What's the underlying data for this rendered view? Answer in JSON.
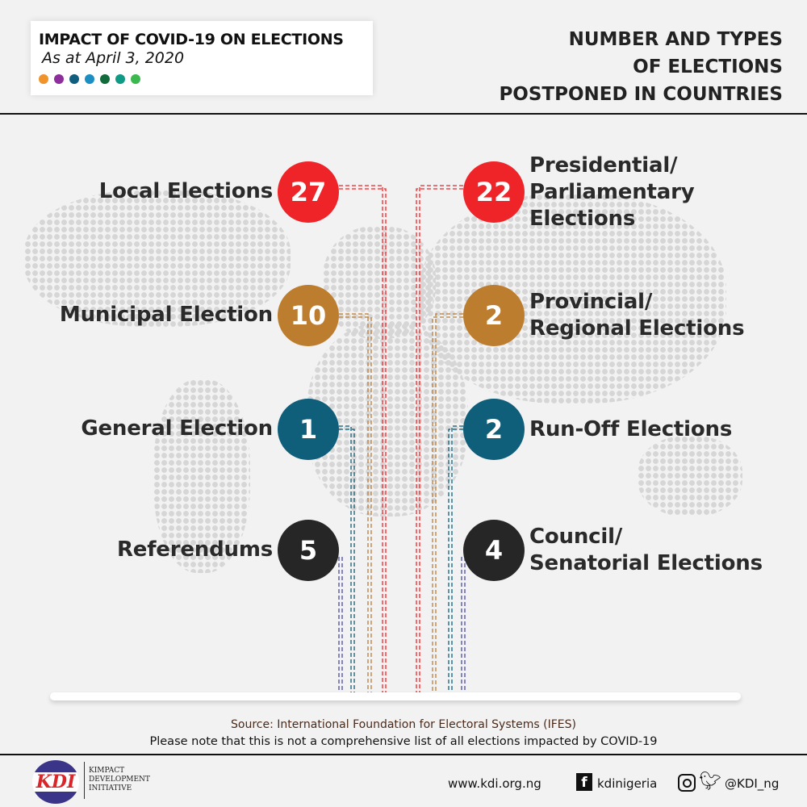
{
  "header": {
    "title": "IMPACT OF COVID-19 ON ELECTIONS",
    "subtitle": "As at April 3, 2020",
    "dot_colors": [
      "#f0932b",
      "#8e2d9c",
      "#0f5e7d",
      "#1b8fc1",
      "#116b3a",
      "#0f9a86",
      "#3cb94e"
    ],
    "right_title": [
      "NUMBER AND TYPES",
      "OF ELECTIONS",
      "POSTPONED IN COUNTRIES"
    ]
  },
  "colors": {
    "red": "#ee2428",
    "brown": "#bd7d2f",
    "teal": "#0f5e7a",
    "dark": "#262626",
    "background": "#f2f2f2"
  },
  "left_items": [
    {
      "label": "Local Elections",
      "count": "27",
      "color": "red"
    },
    {
      "label": "Municipal Election",
      "count": "10",
      "color": "brown"
    },
    {
      "label": "General Election",
      "count": "1",
      "color": "teal"
    },
    {
      "label": "Referendums",
      "count": "5",
      "color": "dark"
    }
  ],
  "right_items": [
    {
      "label_lines": [
        "Presidential/",
        "Parliamentary",
        "Elections"
      ],
      "count": "22",
      "color": "red"
    },
    {
      "label_lines": [
        "Provincial/",
        "Regional Elections"
      ],
      "count": "2",
      "color": "brown"
    },
    {
      "label_lines": [
        "Run-Off Elections"
      ],
      "count": "2",
      "color": "teal"
    },
    {
      "label_lines": [
        "Council/",
        "Senatorial Elections"
      ],
      "count": "4",
      "color": "dark"
    }
  ],
  "footer": {
    "source": "Source: International Foundation for Electoral Systems (IFES)",
    "note": "Please note that this is not a comprehensive list of all elections impacted by COVID-19",
    "logo_text": "KDI",
    "org_name": [
      "KIMPACT",
      "DEVELOPMENT",
      "INITIATIVE"
    ],
    "website": "www.kdi.org.ng",
    "facebook": "kdinigeria",
    "twitter": "@KDI_ng",
    "icons": [
      "facebook-icon",
      "instagram-icon",
      "twitter-icon"
    ]
  }
}
